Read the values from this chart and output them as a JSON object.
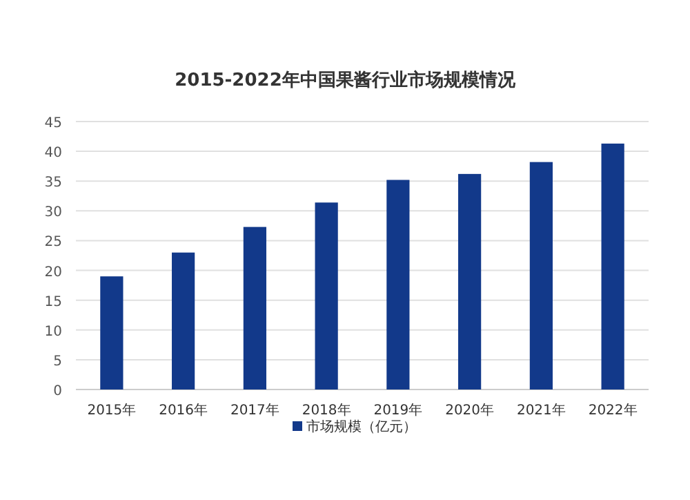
{
  "chart_data": {
    "type": "bar",
    "title": "2015-2022年中国果酱行业市场规模情况",
    "categories": [
      "2015年",
      "2016年",
      "2017年",
      "2018年",
      "2019年",
      "2020年",
      "2021年",
      "2022年"
    ],
    "series": [
      {
        "name": "市场规模（亿元）",
        "color": "#12398a",
        "values": [
          19.0,
          23.0,
          27.3,
          31.4,
          35.2,
          36.2,
          38.2,
          41.3
        ]
      }
    ],
    "ylim": [
      0,
      45
    ],
    "yticks": [
      0,
      5,
      10,
      15,
      20,
      25,
      30,
      35,
      40,
      45
    ],
    "grid": "y",
    "legend": "bottom"
  }
}
